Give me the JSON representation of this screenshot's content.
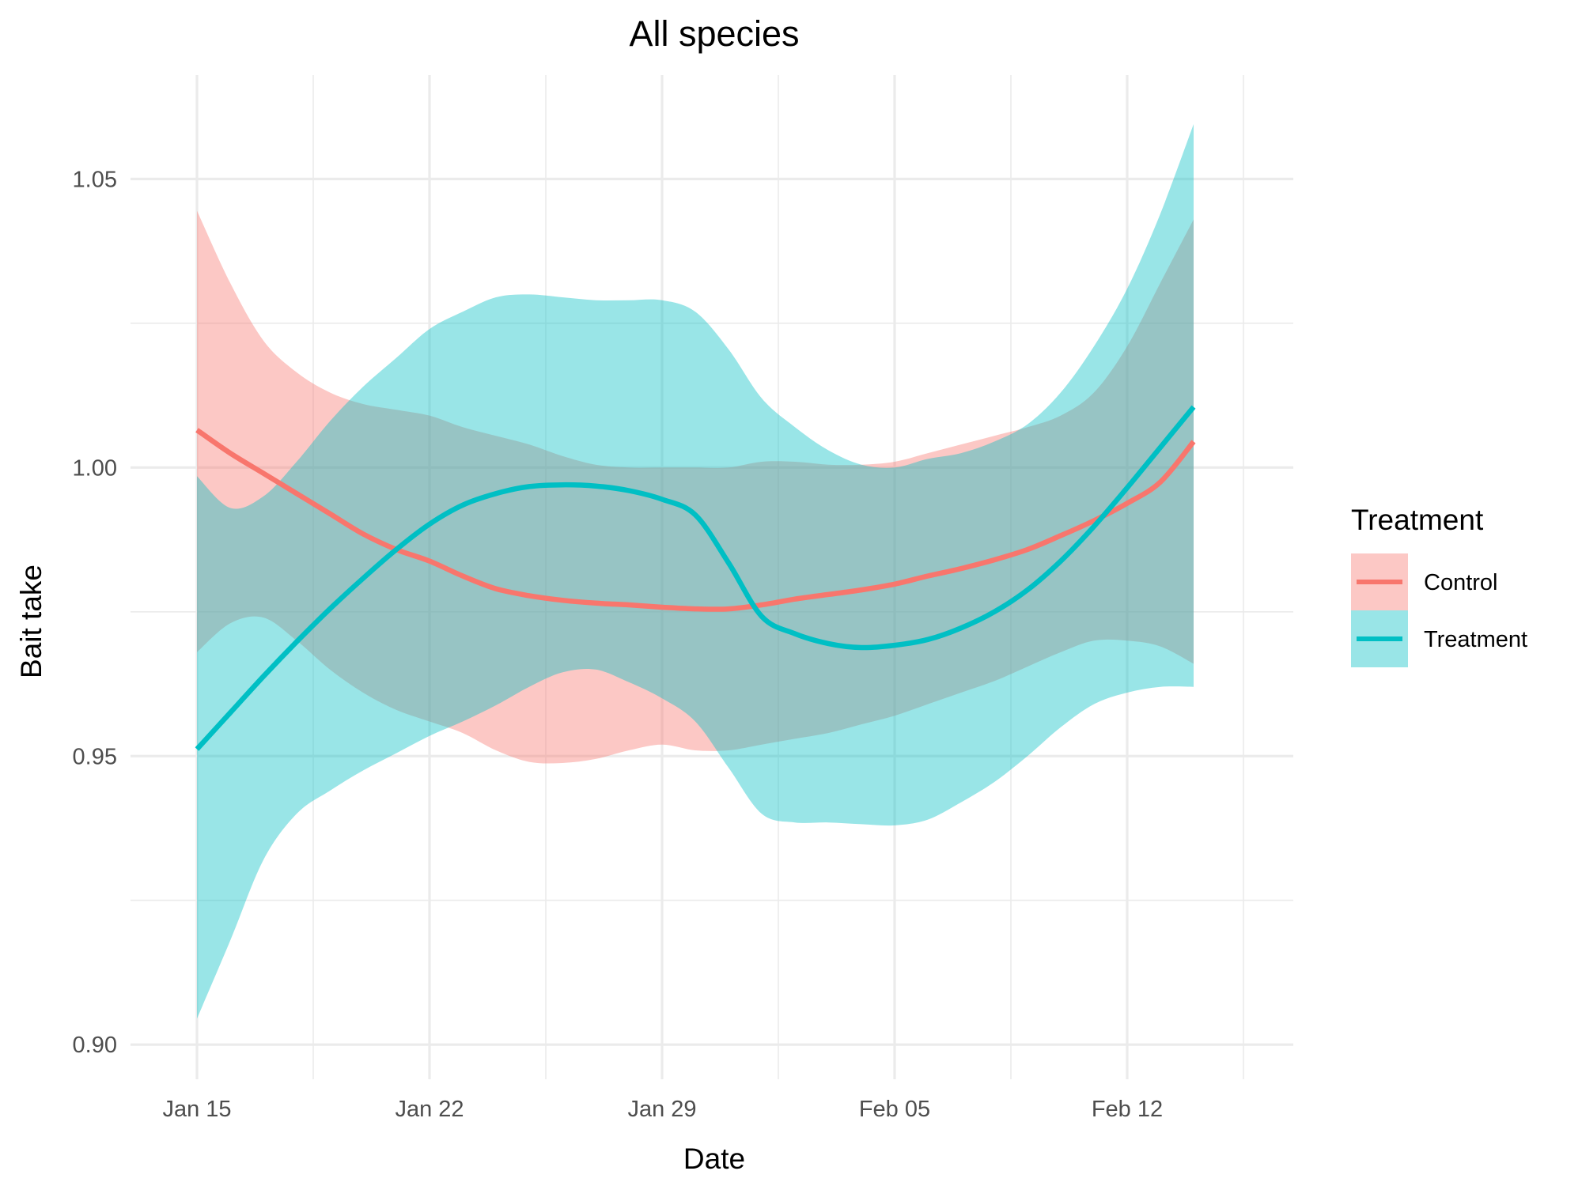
{
  "chart_data": {
    "type": "line",
    "title": "All species",
    "xlabel": "Date",
    "ylabel": "Bait take",
    "x_type": "date",
    "xlim": [
      "2024-01-13",
      "2024-02-17"
    ],
    "ylim": [
      0.894,
      1.068
    ],
    "x_ticks": [
      {
        "date": "2024-01-15",
        "label": "Jan 15"
      },
      {
        "date": "2024-01-22",
        "label": "Jan 22"
      },
      {
        "date": "2024-01-29",
        "label": "Jan 29"
      },
      {
        "date": "2024-02-05",
        "label": "Feb 05"
      },
      {
        "date": "2024-02-12",
        "label": "Feb 12"
      }
    ],
    "y_ticks": [
      0.9,
      0.95,
      1.0,
      1.05
    ],
    "y_tick_labels": [
      "0.90",
      "0.95",
      "1.00",
      "1.05"
    ],
    "grid": true,
    "legend": {
      "title": "Treatment",
      "position": "right"
    },
    "series": [
      {
        "name": "Control",
        "color": "#F8766D",
        "x": [
          "2024-01-15",
          "2024-01-16",
          "2024-01-17",
          "2024-01-18",
          "2024-01-19",
          "2024-01-20",
          "2024-01-21",
          "2024-01-22",
          "2024-01-23",
          "2024-01-24",
          "2024-01-25",
          "2024-01-26",
          "2024-01-27",
          "2024-01-28",
          "2024-01-29",
          "2024-01-30",
          "2024-01-31",
          "2024-02-01",
          "2024-02-02",
          "2024-02-03",
          "2024-02-04",
          "2024-02-05",
          "2024-02-06",
          "2024-02-07",
          "2024-02-08",
          "2024-02-09",
          "2024-02-10",
          "2024-02-11",
          "2024-02-12",
          "2024-02-13",
          "2024-02-14"
        ],
        "y": [
          1.0065,
          1.0025,
          0.999,
          0.9955,
          0.992,
          0.9885,
          0.9858,
          0.9838,
          0.9812,
          0.979,
          0.9778,
          0.977,
          0.9765,
          0.9762,
          0.9758,
          0.9755,
          0.9755,
          0.9762,
          0.9772,
          0.978,
          0.9788,
          0.9798,
          0.9812,
          0.9825,
          0.984,
          0.9858,
          0.9882,
          0.9908,
          0.9938,
          0.9975,
          1.0045
        ],
        "lower": [
          0.968,
          0.973,
          0.974,
          0.97,
          0.965,
          0.961,
          0.958,
          0.956,
          0.954,
          0.951,
          0.949,
          0.9488,
          0.9495,
          0.951,
          0.952,
          0.951,
          0.951,
          0.952,
          0.953,
          0.954,
          0.9555,
          0.957,
          0.959,
          0.961,
          0.963,
          0.9655,
          0.968,
          0.97,
          0.97,
          0.969,
          0.966
        ],
        "upper": [
          1.0445,
          1.032,
          1.022,
          1.0165,
          1.013,
          1.011,
          1.01,
          1.009,
          1.007,
          1.0055,
          1.004,
          1.002,
          1.0005,
          1.0,
          1.0,
          1.0,
          1.0,
          1.001,
          1.001,
          1.0005,
          1.0005,
          1.001,
          1.0025,
          1.004,
          1.0055,
          1.007,
          1.009,
          1.013,
          1.021,
          1.032,
          1.043
        ]
      },
      {
        "name": "Treatment",
        "color": "#00BFC4",
        "x": [
          "2024-01-15",
          "2024-01-16",
          "2024-01-17",
          "2024-01-18",
          "2024-01-19",
          "2024-01-20",
          "2024-01-21",
          "2024-01-22",
          "2024-01-23",
          "2024-01-24",
          "2024-01-25",
          "2024-01-26",
          "2024-01-27",
          "2024-01-28",
          "2024-01-29",
          "2024-01-30",
          "2024-01-31",
          "2024-02-01",
          "2024-02-02",
          "2024-02-03",
          "2024-02-04",
          "2024-02-05",
          "2024-02-06",
          "2024-02-07",
          "2024-02-08",
          "2024-02-09",
          "2024-02-10",
          "2024-02-11",
          "2024-02-12",
          "2024-02-13",
          "2024-02-14"
        ],
        "y": [
          0.9512,
          0.9575,
          0.9638,
          0.9698,
          0.9755,
          0.9808,
          0.9858,
          0.9902,
          0.9935,
          0.9955,
          0.9967,
          0.997,
          0.9968,
          0.996,
          0.9945,
          0.9918,
          0.9835,
          0.9742,
          0.9712,
          0.9695,
          0.9688,
          0.9692,
          0.9702,
          0.9722,
          0.975,
          0.9788,
          0.9838,
          0.9898,
          0.9965,
          1.0035,
          1.0105
        ],
        "lower": [
          0.9045,
          0.918,
          0.932,
          0.94,
          0.944,
          0.9475,
          0.9505,
          0.9535,
          0.956,
          0.9588,
          0.962,
          0.9645,
          0.965,
          0.9628,
          0.96,
          0.956,
          0.948,
          0.94,
          0.9385,
          0.9385,
          0.9382,
          0.938,
          0.939,
          0.942,
          0.9455,
          0.95,
          0.955,
          0.959,
          0.961,
          0.962,
          0.962
        ],
        "upper": [
          0.9985,
          0.993,
          0.995,
          1.001,
          1.008,
          1.014,
          1.019,
          1.024,
          1.027,
          1.0295,
          1.03,
          1.0295,
          1.029,
          1.029,
          1.029,
          1.027,
          1.0205,
          1.012,
          1.007,
          1.003,
          1.0005,
          1.0,
          1.0015,
          1.0025,
          1.0045,
          1.0075,
          1.013,
          1.021,
          1.031,
          1.044,
          1.0595
        ]
      }
    ]
  }
}
